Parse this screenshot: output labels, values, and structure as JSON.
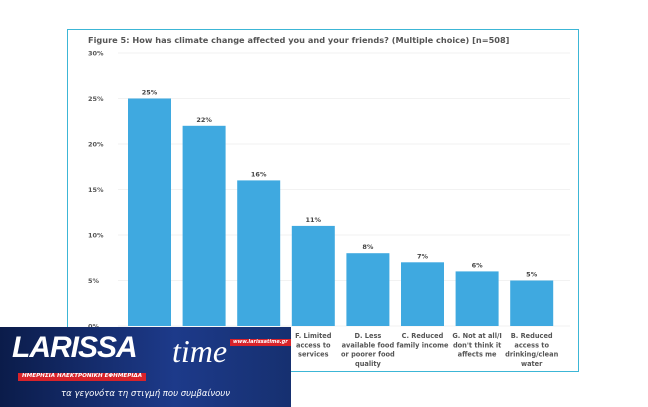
{
  "chart_data": {
    "type": "bar",
    "title": "Figure 5: How has climate change affected you and your friends? (Multiple choice) [n=508]",
    "categories": [
      "",
      "",
      "",
      "F. Limited access to services",
      "D. Less available food or poorer food quality",
      "C. Reduced family income",
      "G. Not at all/I don't think it affects me",
      "B. Reduced access to drinking/clean water"
    ],
    "category_lines": [
      [],
      [],
      [],
      [
        "F. Limited",
        "access to",
        "services"
      ],
      [
        "D. Less",
        "available food",
        "or poorer food",
        "quality"
      ],
      [
        "C. Reduced",
        "family income"
      ],
      [
        "G. Not at all/I",
        "don't think it",
        "affects me"
      ],
      [
        "B. Reduced",
        "access to",
        "drinking/clean",
        "water"
      ]
    ],
    "values": [
      25,
      22,
      16,
      11,
      8,
      7,
      6,
      5
    ],
    "data_labels": [
      "25%",
      "22%",
      "16%",
      "11%",
      "8%",
      "7%",
      "6%",
      "5%"
    ],
    "yticks": [
      "0%",
      "5%",
      "10%",
      "15%",
      "20%",
      "25%",
      "30%"
    ],
    "ylim": [
      0,
      30
    ],
    "xlabel": "",
    "ylabel": "",
    "grid": true,
    "bar_color": "#3fa9e0",
    "border_color": "#3cb6d6"
  },
  "logo": {
    "name_main": "LARISSA",
    "name_script": "time",
    "url": "www.larissatime.gr",
    "subtitle": "ΗΜΕΡΗΣΙΑ ΗΛΕΚΤΡΟΝΙΚΗ ΕΦΗΜΕΡΙΔΑ",
    "slogan": "τα γεγονότα τη στιγμή που συμβαίνουν"
  }
}
